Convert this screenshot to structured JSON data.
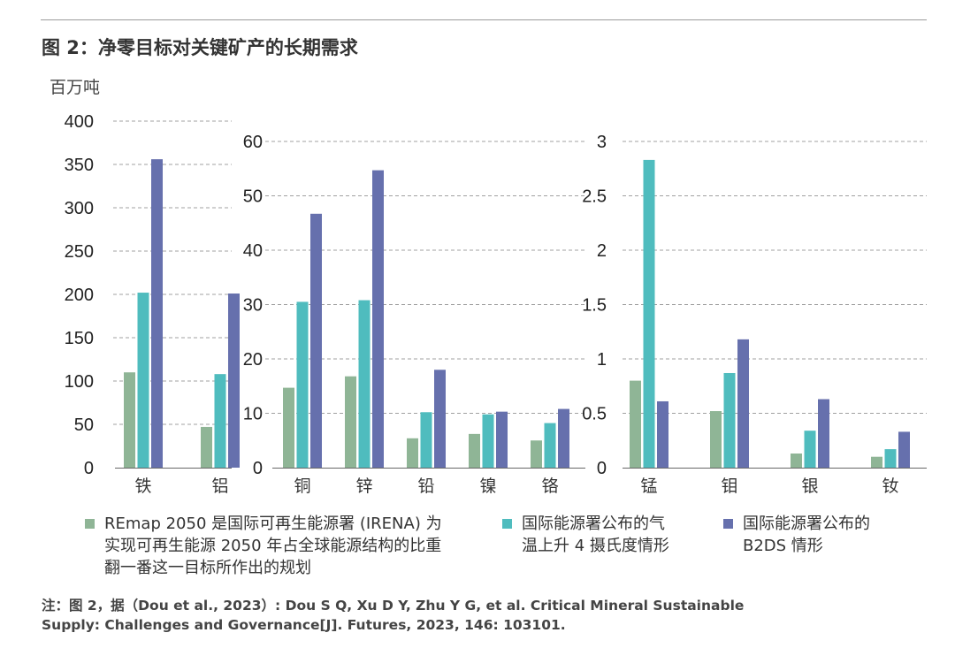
{
  "figure": {
    "title": "图 2：净零目标对关键矿产的长期需求",
    "unit": "百万吨",
    "note_line1": "注：图 2，据（Dou et al., 2023）: Dou S Q, Xu D Y, Zhu Y G, et al. Critical Mineral Sustainable",
    "note_line2": "Supply: Challenges and Governance[J]. Futures, 2023, 146: 103101."
  },
  "colors": {
    "series1": "#8fb596",
    "series2": "#4fbcbe",
    "series3": "#6670ad",
    "grid": "#a0a0a0",
    "axis": "#666666",
    "text": "#333333"
  },
  "legend": [
    {
      "line1": "REmap 2050 是国际可再生能源署 (IRENA) 为",
      "line2": "实现可再生能源 2050 年占全球能源结构的比重",
      "line3": "翻一番这一目标所作出的规划"
    },
    {
      "line1": "国际能源署公布的气",
      "line2": "温上升 4 摄氏度情形",
      "line3": ""
    },
    {
      "line1": "国际能源署公布的",
      "line2": "B2DS 情形",
      "line3": ""
    }
  ],
  "chart_data": [
    {
      "type": "bar",
      "categories": [
        "铁",
        "铝"
      ],
      "ylim": [
        0,
        400
      ],
      "yticks": [
        "0",
        "50",
        "100",
        "150",
        "200",
        "250",
        "300",
        "350",
        "400"
      ],
      "grid": true,
      "series": [
        {
          "name": "REmap 2050 是国际可再生能源署 (IRENA) 为实现可再生能源 2050 年占全球能源结构的比重翻一番这一目标所作出的规划",
          "values": [
            110,
            47
          ]
        },
        {
          "name": "国际能源署公布的气温上升 4 摄氏度情形",
          "values": [
            202,
            108
          ]
        },
        {
          "name": "国际能源署公布的 B2DS 情形",
          "values": [
            356,
            201
          ]
        }
      ]
    },
    {
      "type": "bar",
      "categories": [
        "铜",
        "锌",
        "铅",
        "镍",
        "铬"
      ],
      "ylim": [
        0,
        60
      ],
      "yticks": [
        "0",
        "10",
        "20",
        "30",
        "40",
        "50",
        "60"
      ],
      "grid": true,
      "series": [
        {
          "name": "REmap 2050 是国际可再生能源署 (IRENA) 为实现可再生能源 2050 年占全球能源结构的比重翻一番这一目标所作出的规划",
          "values": [
            14.7,
            16.8,
            5.4,
            6.2,
            5
          ]
        },
        {
          "name": "国际能源署公布的气温上升 4 摄氏度情形",
          "values": [
            30.5,
            30.8,
            10.2,
            9.8,
            8.2
          ]
        },
        {
          "name": "国际能源署公布的 B2DS 情形",
          "values": [
            46.7,
            54.7,
            18,
            10.3,
            10.8
          ]
        }
      ]
    },
    {
      "type": "bar",
      "categories": [
        "锰",
        "钼",
        "银",
        "钕"
      ],
      "ylim": [
        0,
        3
      ],
      "yticks": [
        "0",
        "0.5",
        "1",
        "1.5",
        "2",
        "2.5",
        "3"
      ],
      "grid": true,
      "series": [
        {
          "name": "REmap 2050 是国际可再生能源署 (IRENA) 为实现可再生能源 2050 年占全球能源结构的比重翻一番这一目标所作出的规划",
          "values": [
            0.8,
            0.52,
            0.13,
            0.1
          ]
        },
        {
          "name": "国际能源署公布的气温上升 4 摄氏度情形",
          "values": [
            2.83,
            0.87,
            0.34,
            0.17
          ]
        },
        {
          "name": "国际能源署公布的 B2DS 情形",
          "values": [
            0.61,
            1.18,
            0.63,
            0.33
          ]
        }
      ]
    }
  ]
}
